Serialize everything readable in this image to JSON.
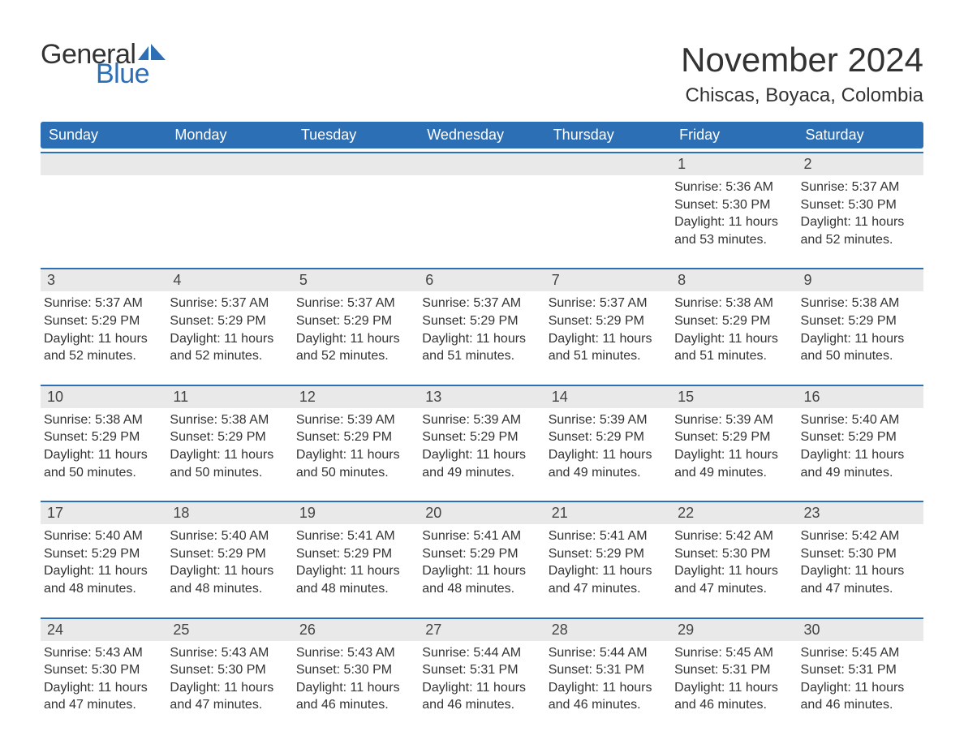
{
  "brand": {
    "word1": "General",
    "word2": "Blue",
    "flag_colors": [
      "#2d6fb5",
      "#2d6fb5"
    ]
  },
  "title": "November 2024",
  "subtitle": "Chiscas, Boyaca, Colombia",
  "columns": [
    "Sunday",
    "Monday",
    "Tuesday",
    "Wednesday",
    "Thursday",
    "Friday",
    "Saturday"
  ],
  "colors": {
    "header_bg": "#2d6fb5",
    "header_text": "#ffffff",
    "row_rule": "#2d6fb5",
    "daynum_bg": "#e9e9e9",
    "text": "#333333",
    "background": "#ffffff"
  },
  "labels": {
    "sunrise": "Sunrise:",
    "sunset": "Sunset:",
    "daylight": "Daylight:"
  },
  "weeks": [
    [
      {
        "empty": true
      },
      {
        "empty": true
      },
      {
        "empty": true
      },
      {
        "empty": true
      },
      {
        "empty": true
      },
      {
        "day": 1,
        "sunrise": "5:36 AM",
        "sunset": "5:30 PM",
        "daylight": "11 hours and 53 minutes."
      },
      {
        "day": 2,
        "sunrise": "5:37 AM",
        "sunset": "5:30 PM",
        "daylight": "11 hours and 52 minutes."
      }
    ],
    [
      {
        "day": 3,
        "sunrise": "5:37 AM",
        "sunset": "5:29 PM",
        "daylight": "11 hours and 52 minutes."
      },
      {
        "day": 4,
        "sunrise": "5:37 AM",
        "sunset": "5:29 PM",
        "daylight": "11 hours and 52 minutes."
      },
      {
        "day": 5,
        "sunrise": "5:37 AM",
        "sunset": "5:29 PM",
        "daylight": "11 hours and 52 minutes."
      },
      {
        "day": 6,
        "sunrise": "5:37 AM",
        "sunset": "5:29 PM",
        "daylight": "11 hours and 51 minutes."
      },
      {
        "day": 7,
        "sunrise": "5:37 AM",
        "sunset": "5:29 PM",
        "daylight": "11 hours and 51 minutes."
      },
      {
        "day": 8,
        "sunrise": "5:38 AM",
        "sunset": "5:29 PM",
        "daylight": "11 hours and 51 minutes."
      },
      {
        "day": 9,
        "sunrise": "5:38 AM",
        "sunset": "5:29 PM",
        "daylight": "11 hours and 50 minutes."
      }
    ],
    [
      {
        "day": 10,
        "sunrise": "5:38 AM",
        "sunset": "5:29 PM",
        "daylight": "11 hours and 50 minutes."
      },
      {
        "day": 11,
        "sunrise": "5:38 AM",
        "sunset": "5:29 PM",
        "daylight": "11 hours and 50 minutes."
      },
      {
        "day": 12,
        "sunrise": "5:39 AM",
        "sunset": "5:29 PM",
        "daylight": "11 hours and 50 minutes."
      },
      {
        "day": 13,
        "sunrise": "5:39 AM",
        "sunset": "5:29 PM",
        "daylight": "11 hours and 49 minutes."
      },
      {
        "day": 14,
        "sunrise": "5:39 AM",
        "sunset": "5:29 PM",
        "daylight": "11 hours and 49 minutes."
      },
      {
        "day": 15,
        "sunrise": "5:39 AM",
        "sunset": "5:29 PM",
        "daylight": "11 hours and 49 minutes."
      },
      {
        "day": 16,
        "sunrise": "5:40 AM",
        "sunset": "5:29 PM",
        "daylight": "11 hours and 49 minutes."
      }
    ],
    [
      {
        "day": 17,
        "sunrise": "5:40 AM",
        "sunset": "5:29 PM",
        "daylight": "11 hours and 48 minutes."
      },
      {
        "day": 18,
        "sunrise": "5:40 AM",
        "sunset": "5:29 PM",
        "daylight": "11 hours and 48 minutes."
      },
      {
        "day": 19,
        "sunrise": "5:41 AM",
        "sunset": "5:29 PM",
        "daylight": "11 hours and 48 minutes."
      },
      {
        "day": 20,
        "sunrise": "5:41 AM",
        "sunset": "5:29 PM",
        "daylight": "11 hours and 48 minutes."
      },
      {
        "day": 21,
        "sunrise": "5:41 AM",
        "sunset": "5:29 PM",
        "daylight": "11 hours and 47 minutes."
      },
      {
        "day": 22,
        "sunrise": "5:42 AM",
        "sunset": "5:30 PM",
        "daylight": "11 hours and 47 minutes."
      },
      {
        "day": 23,
        "sunrise": "5:42 AM",
        "sunset": "5:30 PM",
        "daylight": "11 hours and 47 minutes."
      }
    ],
    [
      {
        "day": 24,
        "sunrise": "5:43 AM",
        "sunset": "5:30 PM",
        "daylight": "11 hours and 47 minutes."
      },
      {
        "day": 25,
        "sunrise": "5:43 AM",
        "sunset": "5:30 PM",
        "daylight": "11 hours and 47 minutes."
      },
      {
        "day": 26,
        "sunrise": "5:43 AM",
        "sunset": "5:30 PM",
        "daylight": "11 hours and 46 minutes."
      },
      {
        "day": 27,
        "sunrise": "5:44 AM",
        "sunset": "5:31 PM",
        "daylight": "11 hours and 46 minutes."
      },
      {
        "day": 28,
        "sunrise": "5:44 AM",
        "sunset": "5:31 PM",
        "daylight": "11 hours and 46 minutes."
      },
      {
        "day": 29,
        "sunrise": "5:45 AM",
        "sunset": "5:31 PM",
        "daylight": "11 hours and 46 minutes."
      },
      {
        "day": 30,
        "sunrise": "5:45 AM",
        "sunset": "5:31 PM",
        "daylight": "11 hours and 46 minutes."
      }
    ]
  ]
}
